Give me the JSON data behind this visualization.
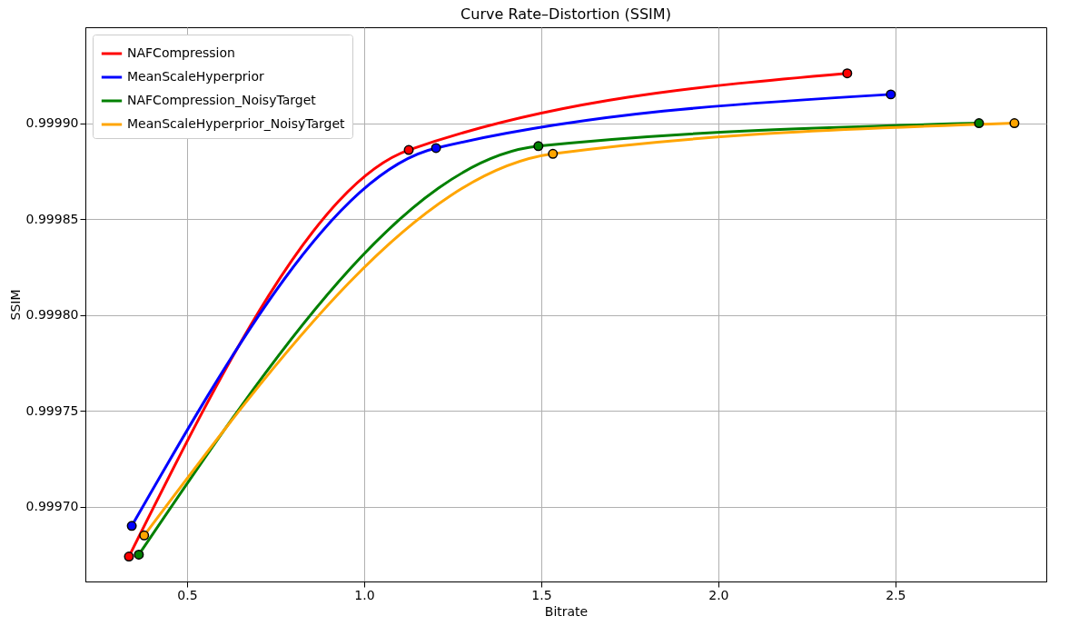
{
  "chart_data": {
    "type": "line",
    "title": "Curve Rate–Distortion (SSIM)",
    "xlabel": "Bitrate",
    "ylabel": "SSIM",
    "series": [
      {
        "name": "NAFCompression",
        "color": "#ff0000",
        "x": [
          0.336,
          1.126,
          2.364
        ],
        "values": [
          0.999674,
          0.999886,
          0.999926
        ]
      },
      {
        "name": "MeanScaleHyperprior",
        "color": "#0000ff",
        "x": [
          0.344,
          1.203,
          2.487
        ],
        "values": [
          0.99969,
          0.999887,
          0.999915
        ]
      },
      {
        "name": "NAFCompression_NoisyTarget",
        "color": "#008000",
        "x": [
          0.364,
          1.492,
          2.736
        ],
        "values": [
          0.999675,
          0.999888,
          0.9999
        ]
      },
      {
        "name": "MeanScaleHyperprior_NoisyTarget",
        "color": "#ffa500",
        "x": [
          0.379,
          1.533,
          2.836
        ],
        "values": [
          0.999685,
          0.999884,
          0.9999
        ]
      }
    ],
    "xlim": [
      0.213,
      2.926
    ],
    "ylim": [
      0.999661,
      0.99995
    ],
    "xticks": [
      0.5,
      {
        "value": 1,
        "label": "1.0"
      },
      1.5,
      {
        "value": 2,
        "label": "2.0"
      },
      2.5
    ],
    "yticks": [
      {
        "value": 0.9997,
        "label": "0.99970"
      },
      0.99975,
      {
        "value": 0.9998,
        "label": "0.99980"
      },
      0.99985,
      {
        "value": 0.9999,
        "label": "0.99990"
      }
    ],
    "grid": true,
    "legend": "top left",
    "marker": "circle",
    "line_style": "solid"
  }
}
